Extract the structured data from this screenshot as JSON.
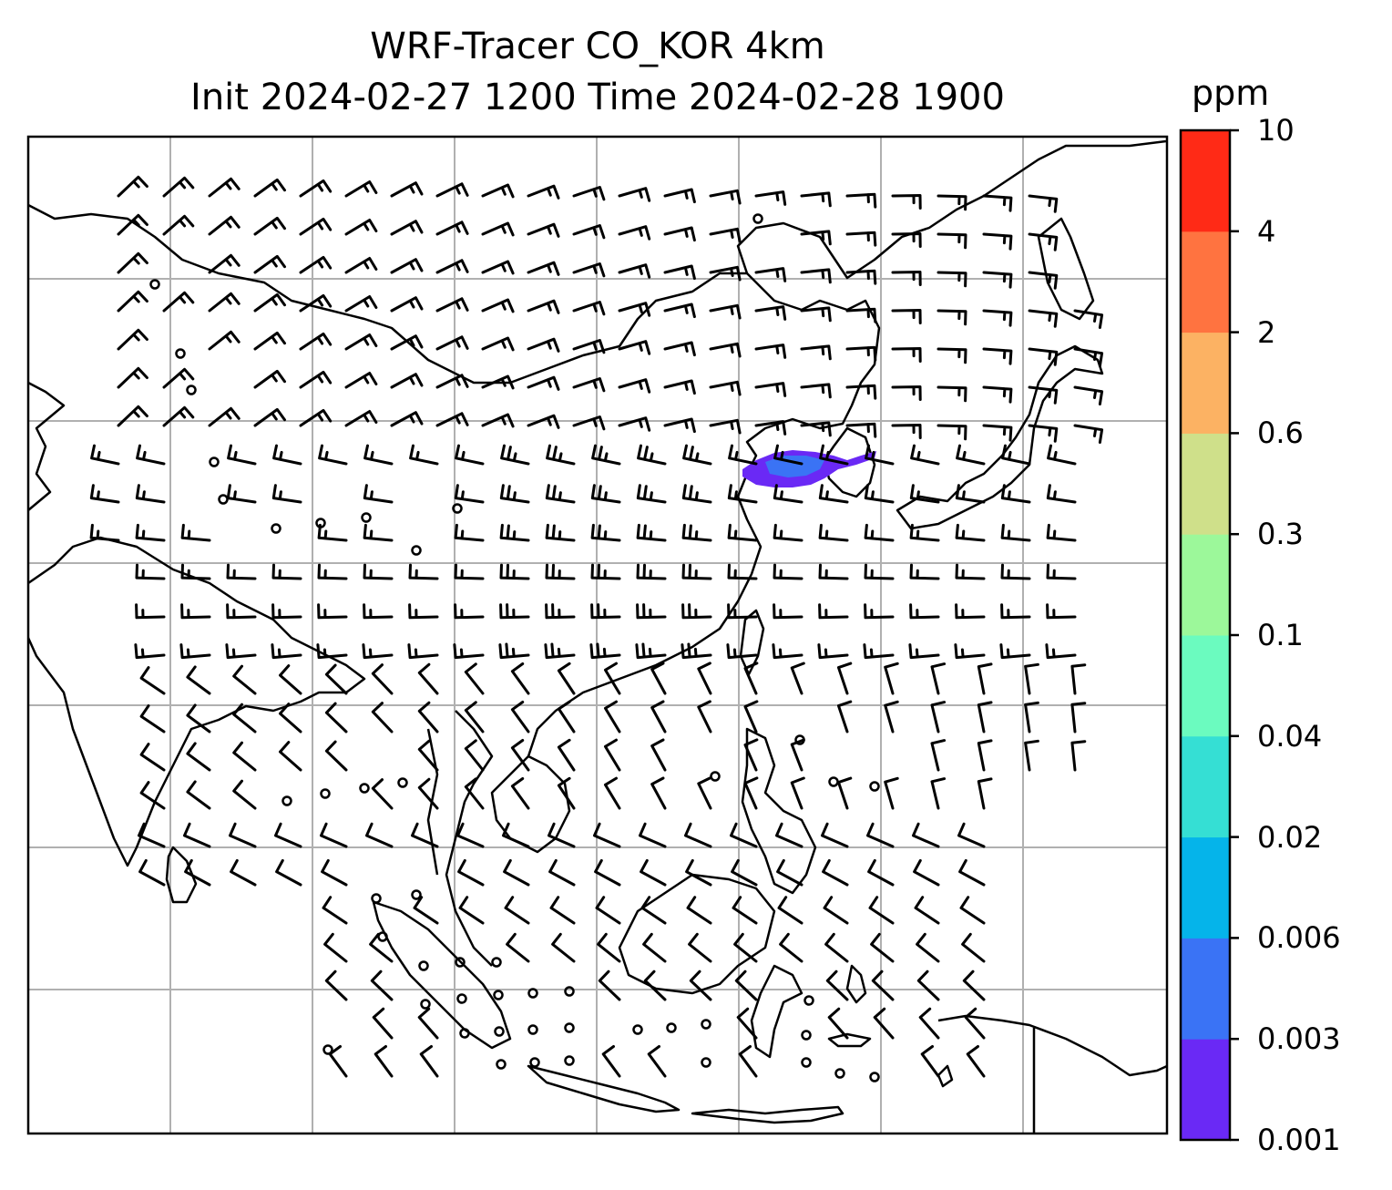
{
  "title": {
    "line1": "WRF-Tracer CO_KOR 4km",
    "line2": "Init 2024-02-27 1200 Time 2024-02-28 1900"
  },
  "colorbar": {
    "unit": "ppm",
    "levels": [
      "0.001",
      "0.003",
      "0.006",
      "0.02",
      "0.04",
      "0.1",
      "0.3",
      "0.6",
      "2",
      "4",
      "10"
    ],
    "colors": [
      "#6a29f5",
      "#3a73f5",
      "#05b4ea",
      "#35dfd4",
      "#6bfbbf",
      "#9cf89a",
      "#cfe08a",
      "#fcb263",
      "#ff7340",
      "#ff2a16"
    ]
  },
  "map": {
    "frame": "black",
    "gridline_color": "#b0b0b0",
    "tracer_plume_color": "#6a29f5",
    "wind_barb_color": "#000000"
  }
}
